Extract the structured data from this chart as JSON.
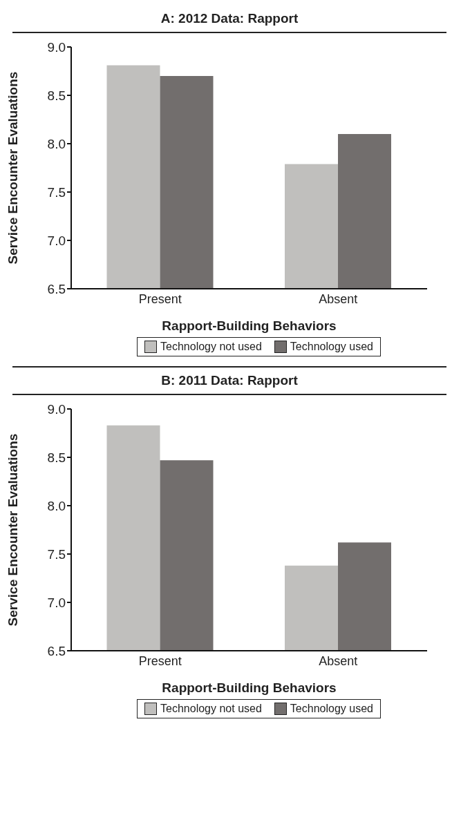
{
  "chart_data": [
    {
      "type": "bar",
      "title": "A: 2012 Data: Rapport",
      "xlabel": "Rapport-Building Behaviors",
      "ylabel": "Service Encounter Evaluations",
      "categories": [
        "Present",
        "Absent"
      ],
      "series": [
        {
          "name": "Technology not used",
          "color": "#c0bfbd",
          "values": [
            8.81,
            7.79
          ]
        },
        {
          "name": "Technology used",
          "color": "#726e6d",
          "values": [
            8.7,
            8.1
          ]
        }
      ],
      "ylim": [
        6.5,
        9.0
      ],
      "yticks": [
        {
          "value": 6.5,
          "label": "6.5"
        },
        {
          "value": 7.0,
          "label": "7.0"
        },
        {
          "value": 7.5,
          "label": "7.5"
        },
        {
          "value": 8.0,
          "label": "8.0"
        },
        {
          "value": 8.5,
          "label": "8.5"
        },
        {
          "value": 9.0,
          "label": "9.0"
        }
      ],
      "grid": false,
      "legend": "bottom"
    },
    {
      "type": "bar",
      "title": "B: 2011 Data: Rapport",
      "xlabel": "Rapport-Building Behaviors",
      "ylabel": "Service Encounter Evaluations",
      "categories": [
        "Present",
        "Absent"
      ],
      "series": [
        {
          "name": "Technology not used",
          "color": "#c0bfbd",
          "values": [
            8.83,
            7.38
          ]
        },
        {
          "name": "Technology used",
          "color": "#726e6d",
          "values": [
            8.47,
            7.62
          ]
        }
      ],
      "ylim": [
        6.5,
        9.0
      ],
      "yticks": [
        {
          "value": 6.5,
          "label": "6.5"
        },
        {
          "value": 7.0,
          "label": "7.0"
        },
        {
          "value": 7.5,
          "label": "7.5"
        },
        {
          "value": 8.0,
          "label": "8.0"
        },
        {
          "value": 8.5,
          "label": "8.5"
        },
        {
          "value": 9.0,
          "label": "9.0"
        }
      ],
      "grid": false,
      "legend": "bottom"
    }
  ]
}
